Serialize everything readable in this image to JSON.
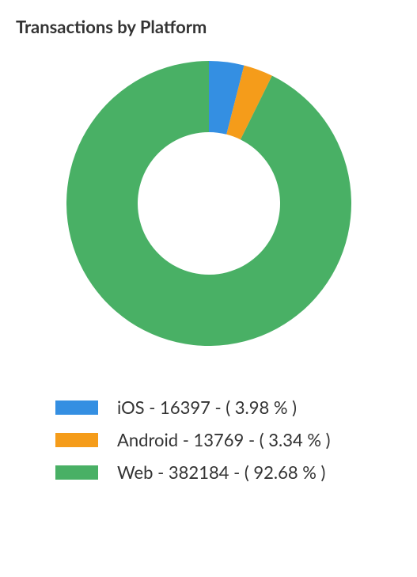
{
  "title": "Transactions by Platform",
  "title_fontsize": 22,
  "title_color": "#333333",
  "background_color": "#ffffff",
  "chart": {
    "type": "donut",
    "outer_radius": 180,
    "inner_radius": 90,
    "start_angle_deg": -90,
    "series": [
      {
        "key": "ios",
        "label": "iOS",
        "value": 16397,
        "percent": 3.98,
        "color": "#348fe2"
      },
      {
        "key": "android",
        "label": "Android",
        "value": 13769,
        "percent": 3.34,
        "color": "#f59c1a"
      },
      {
        "key": "web",
        "label": "Web",
        "value": 382184,
        "percent": 92.68,
        "color": "#49b065"
      }
    ]
  },
  "legend": {
    "swatch_width": 54,
    "swatch_height": 18,
    "font_size": 22,
    "text_color": "#333333",
    "separator": " - ",
    "percent_prefix": "( ",
    "percent_suffix": " % )"
  }
}
